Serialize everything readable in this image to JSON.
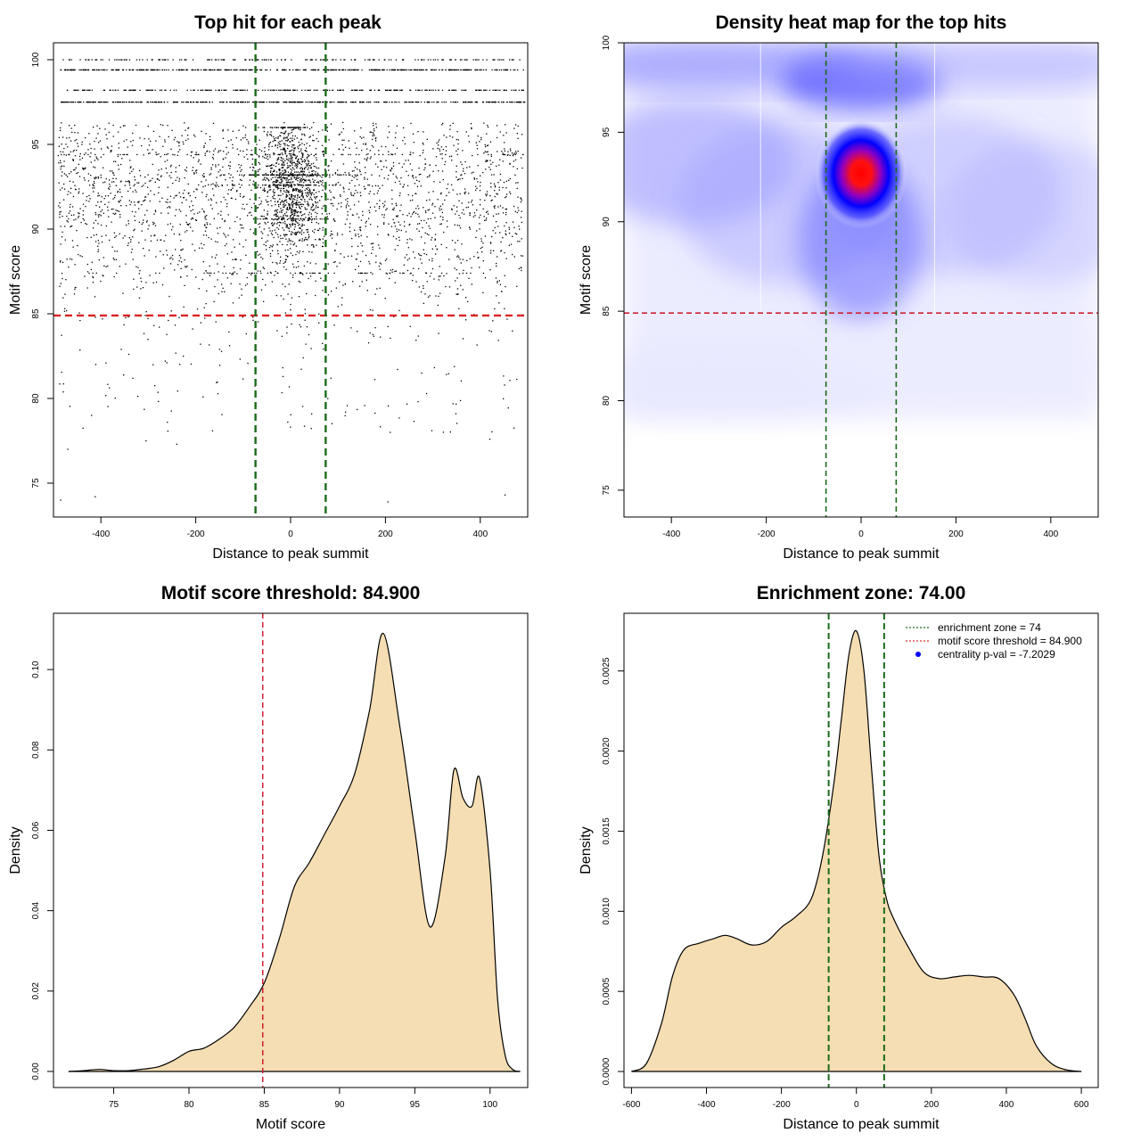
{
  "chart_data": [
    {
      "type": "scatter",
      "title": "Top hit for each peak",
      "xlabel": "Distance to peak summit",
      "ylabel": "Motif score",
      "xlim": [
        -500,
        500
      ],
      "ylim": [
        73,
        101
      ],
      "xticks": [
        -400,
        -200,
        0,
        200,
        400
      ],
      "yticks": [
        75,
        80,
        85,
        90,
        95,
        100
      ],
      "hlines": [
        {
          "y": 84.9,
          "color": "#dd2222",
          "style": "dashed"
        }
      ],
      "vlines": [
        {
          "x": -74,
          "color": "#1a6b1a",
          "style": "dashed"
        },
        {
          "x": 74,
          "color": "#1a6b1a",
          "style": "dashed"
        }
      ],
      "discrete_score_levels": [
        100,
        99.4,
        98.2,
        97.5,
        94.4,
        93.2,
        92.6,
        90.6,
        87.4
      ],
      "center_cluster": {
        "x": 0,
        "y": 92.7
      },
      "n_points_approx": 3800
    },
    {
      "type": "heatmap",
      "title": "Density heat map for the top hits",
      "xlabel": "Distance to peak summit",
      "ylabel": "Motif score",
      "xlim": [
        -500,
        500
      ],
      "ylim": [
        73.5,
        100
      ],
      "xticks": [
        -400,
        -200,
        0,
        200,
        400
      ],
      "yticks": [
        75,
        80,
        85,
        90,
        95,
        100
      ],
      "peak": {
        "x": 0,
        "y": 92.7
      },
      "hlines": [
        {
          "y": 84.9,
          "color": "#cc2233",
          "style": "dashed"
        }
      ],
      "vlines": [
        {
          "x": -74,
          "color": "#1a6b1a",
          "style": "dashed"
        },
        {
          "x": 74,
          "color": "#1a6b1a",
          "style": "dashed"
        }
      ],
      "colors": {
        "low": "#ffffff",
        "mid": "#0000ff",
        "high": "#ff0000"
      }
    },
    {
      "type": "area",
      "title": "Motif score threshold: 84.900",
      "xlabel": "Motif score",
      "ylabel": "Density",
      "xlim": [
        71,
        102.5
      ],
      "ylim": [
        -0.004,
        0.114
      ],
      "xticks": [
        75,
        80,
        85,
        90,
        95,
        100
      ],
      "yticks": [
        0.0,
        0.02,
        0.04,
        0.06,
        0.08,
        0.1
      ],
      "ytick_labels": [
        "0.00",
        "0.02",
        "0.04",
        "0.06",
        "0.08",
        "0.10"
      ],
      "x": [
        72,
        73,
        74,
        75,
        76,
        77,
        78,
        79,
        80,
        81,
        82,
        83,
        84,
        85,
        86,
        87,
        88,
        89,
        90,
        91,
        92,
        92.9,
        94,
        95,
        96,
        97,
        97.6,
        98.2,
        98.8,
        99.3,
        100,
        100.5,
        101,
        101.5,
        102
      ],
      "values": [
        0.0,
        0.0002,
        0.0005,
        0.0002,
        0.0002,
        0.0006,
        0.0012,
        0.0028,
        0.005,
        0.0058,
        0.008,
        0.011,
        0.016,
        0.022,
        0.033,
        0.046,
        0.052,
        0.059,
        0.066,
        0.074,
        0.09,
        0.109,
        0.086,
        0.06,
        0.036,
        0.053,
        0.075,
        0.068,
        0.066,
        0.073,
        0.05,
        0.018,
        0.004,
        0.0005,
        0.0
      ],
      "fill": "#f5deb3",
      "vlines": [
        {
          "x": 84.9,
          "color": "#cc2233",
          "style": "dashed"
        }
      ]
    },
    {
      "type": "area",
      "title": "Enrichment zone: 74.00",
      "xlabel": "Distance to peak summit",
      "ylabel": "Density",
      "xlim": [
        -620,
        645
      ],
      "ylim": [
        -0.0001,
        0.00286
      ],
      "xticks": [
        -600,
        -400,
        -200,
        0,
        200,
        400,
        600
      ],
      "yticks": [
        0.0,
        0.0005,
        0.001,
        0.0015,
        0.002,
        0.0025
      ],
      "ytick_labels": [
        "0.0000",
        "0.0005",
        "0.0010",
        "0.0015",
        "0.0020",
        "0.0025"
      ],
      "x": [
        -600,
        -560,
        -520,
        -490,
        -460,
        -420,
        -380,
        -350,
        -320,
        -280,
        -240,
        -200,
        -160,
        -120,
        -90,
        -60,
        -40,
        -20,
        0,
        20,
        40,
        60,
        80,
        100,
        140,
        180,
        220,
        260,
        300,
        340,
        380,
        420,
        450,
        480,
        520,
        560,
        600
      ],
      "values": [
        0.0,
        5e-05,
        0.0003,
        0.0006,
        0.00076,
        0.0008,
        0.00083,
        0.00085,
        0.00083,
        0.00079,
        0.00081,
        0.0009,
        0.00097,
        0.00108,
        0.00135,
        0.0018,
        0.0022,
        0.0026,
        0.00275,
        0.0025,
        0.0019,
        0.00135,
        0.00108,
        0.00095,
        0.00077,
        0.00062,
        0.00058,
        0.00059,
        0.0006,
        0.00059,
        0.00058,
        0.00048,
        0.00033,
        0.00016,
        5e-05,
        1e-05,
        0.0
      ],
      "fill": "#f5deb3",
      "vlines": [
        {
          "x": -74,
          "color": "#1a6b1a",
          "style": "dashed"
        },
        {
          "x": 74,
          "color": "#1a6b1a",
          "style": "dashed"
        }
      ],
      "legend": {
        "placement": "top-right",
        "entries": [
          {
            "label": "enrichment zone = 74",
            "color": "#1a6b1a",
            "kind": "dotted-line"
          },
          {
            "label": "motif score threshold = 84.900",
            "color": "#dd3333",
            "kind": "dotted-line"
          },
          {
            "label": "centrality p-val = -7.2029",
            "color": "#0000ff",
            "kind": "point"
          }
        ]
      }
    }
  ]
}
